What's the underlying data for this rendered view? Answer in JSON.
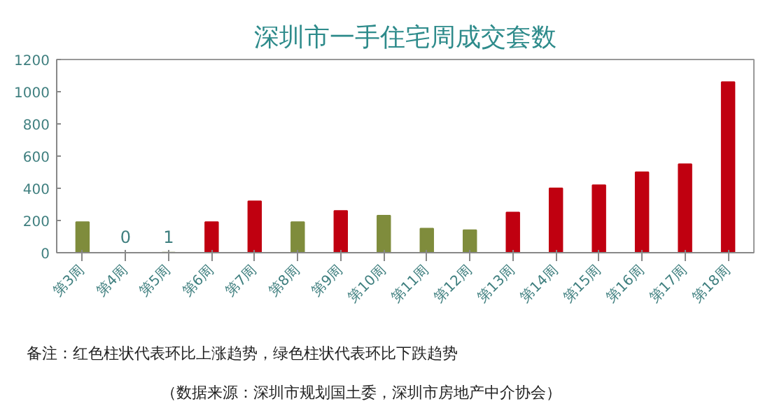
{
  "chart_data": {
    "type": "bar",
    "title": "深圳市一手住宅周成交套数",
    "categories": [
      "第3周",
      "第4周",
      "第5周",
      "第6周",
      "第7周",
      "第8周",
      "第9周",
      "第10周",
      "第11周",
      "第12周",
      "第13周",
      "第14周",
      "第15周",
      "第16周",
      "第17周",
      "第18周"
    ],
    "values": [
      190,
      0,
      1,
      190,
      320,
      190,
      260,
      230,
      150,
      140,
      250,
      400,
      420,
      500,
      550,
      1060
    ],
    "value_labels": [
      null,
      "0",
      "1",
      null,
      null,
      null,
      null,
      null,
      null,
      null,
      null,
      null,
      null,
      null,
      null,
      null
    ],
    "colors": [
      "#7f8c3c",
      "#7f8c3c",
      "#7f8c3c",
      "#c00010",
      "#c00010",
      "#7f8c3c",
      "#c00010",
      "#7f8c3c",
      "#7f8c3c",
      "#7f8c3c",
      "#c00010",
      "#c00010",
      "#c00010",
      "#c00010",
      "#c00010",
      "#c00010"
    ],
    "ylim": [
      0,
      1200
    ],
    "yticks": [
      0,
      200,
      400,
      600,
      800,
      1000,
      1200
    ],
    "grid": false,
    "annotations": [
      "备注：红色柱状代表环比上涨趋势，绿色柱状代表环比下跌趋势",
      "（数据来源：深圳市规划国土委，深圳市房地产中介协会）"
    ]
  }
}
